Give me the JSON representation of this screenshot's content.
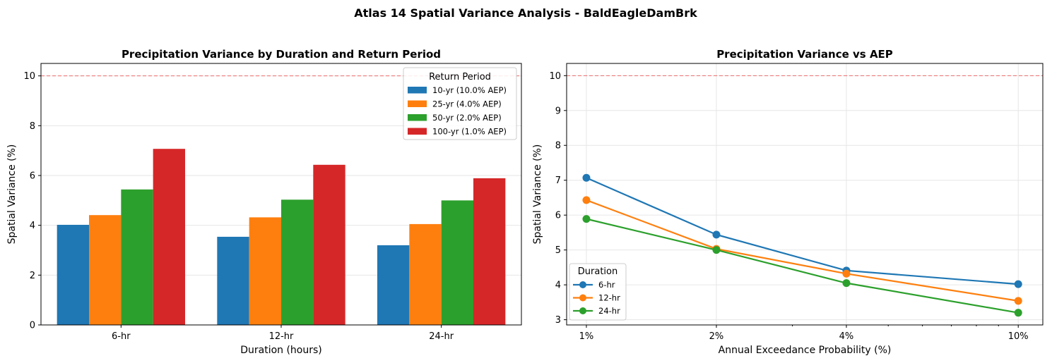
{
  "figure": {
    "suptitle": "Atlas 14 Spatial Variance Analysis - BaldEagleDamBrk"
  },
  "chart_data": [
    {
      "type": "bar",
      "title": "Precipitation Variance by Duration and Return Period",
      "xlabel": "Duration (hours)",
      "ylabel": "Spatial Variance (%)",
      "categories": [
        "6-hr",
        "12-hr",
        "24-hr"
      ],
      "ylim": [
        0,
        10.5
      ],
      "yticks": [
        0,
        2,
        4,
        6,
        8,
        10
      ],
      "threshold": 10,
      "threshold_color": "#ef6b6b",
      "grid": true,
      "legend": {
        "title": "Return Period",
        "position": "top-right"
      },
      "series": [
        {
          "name": "10-yr (10.0% AEP)",
          "color": "#1f77b4",
          "values": [
            4.02,
            3.54,
            3.2
          ]
        },
        {
          "name": "25-yr (4.0% AEP)",
          "color": "#ff7f0e",
          "values": [
            4.41,
            4.32,
            4.05
          ]
        },
        {
          "name": "50-yr (2.0% AEP)",
          "color": "#2ca02c",
          "values": [
            5.44,
            5.03,
            5.0
          ]
        },
        {
          "name": "100-yr (1.0% AEP)",
          "color": "#d62728",
          "values": [
            7.07,
            6.43,
            5.89
          ]
        }
      ]
    },
    {
      "type": "line",
      "title": "Precipitation Variance vs AEP",
      "xlabel": "Annual Exceedance Probability (%)",
      "ylabel": "Spatial Variance (%)",
      "x": [
        1,
        2,
        4,
        10
      ],
      "xticklabels": [
        "1%",
        "2%",
        "4%",
        "10%"
      ],
      "xscale": "log",
      "xlim": [
        0.9,
        11.4
      ],
      "ylim": [
        2.85,
        10.35
      ],
      "yticks": [
        3,
        4,
        5,
        6,
        7,
        8,
        9,
        10
      ],
      "threshold": 10,
      "threshold_color": "#ef6b6b",
      "grid": true,
      "legend": {
        "title": "Duration",
        "position": "lower-left"
      },
      "series": [
        {
          "name": "6-hr",
          "color": "#1f77b4",
          "values": [
            7.07,
            5.44,
            4.41,
            4.02
          ]
        },
        {
          "name": "12-hr",
          "color": "#ff7f0e",
          "values": [
            6.43,
            5.03,
            4.32,
            3.54
          ]
        },
        {
          "name": "24-hr",
          "color": "#2ca02c",
          "values": [
            5.89,
            5.0,
            4.05,
            3.2
          ]
        }
      ]
    }
  ]
}
